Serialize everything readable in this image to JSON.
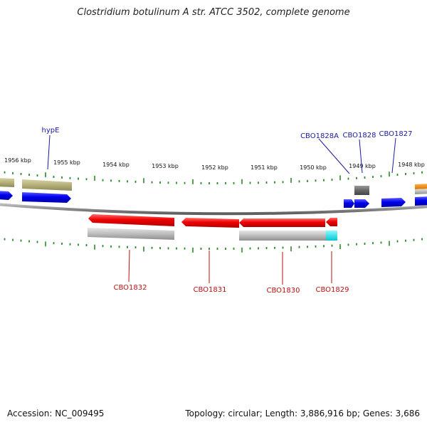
{
  "title": "Clostridium botulinum A str. ATCC 3502, complete genome",
  "footer": {
    "accession": "Accession: NC_009495",
    "summary": "Topology: circular; Length: 3,886,916 bp; Genes: 3,686"
  },
  "colors": {
    "forward_gene": "#0000ee",
    "forward_label": "#1a1aa0",
    "reverse_gene": "#ee0000",
    "reverse_label": "#bb1111",
    "pseudo_gene": "#b5b07a",
    "rna_gene": "#666666",
    "orange_gene": "#ee8800",
    "cds_shadow": "#bdbdbd",
    "cyan_segment": "#00e5ee",
    "ticks": "#2a8a2a",
    "backbone": "#8a8a8a"
  },
  "scale_labels": [
    "1956 kbp",
    "1955 kbp",
    "1954 kbp",
    "1953 kbp",
    "1952 kbp",
    "1951 kbp",
    "1950 kbp",
    "1949 kbp",
    "1948 kbp"
  ],
  "forward_labels": [
    "hypE",
    "CBO1828A",
    "CBO1828",
    "CBO1827"
  ],
  "reverse_labels": [
    "CBO1832",
    "CBO1831",
    "CBO1830",
    "CBO1829"
  ]
}
